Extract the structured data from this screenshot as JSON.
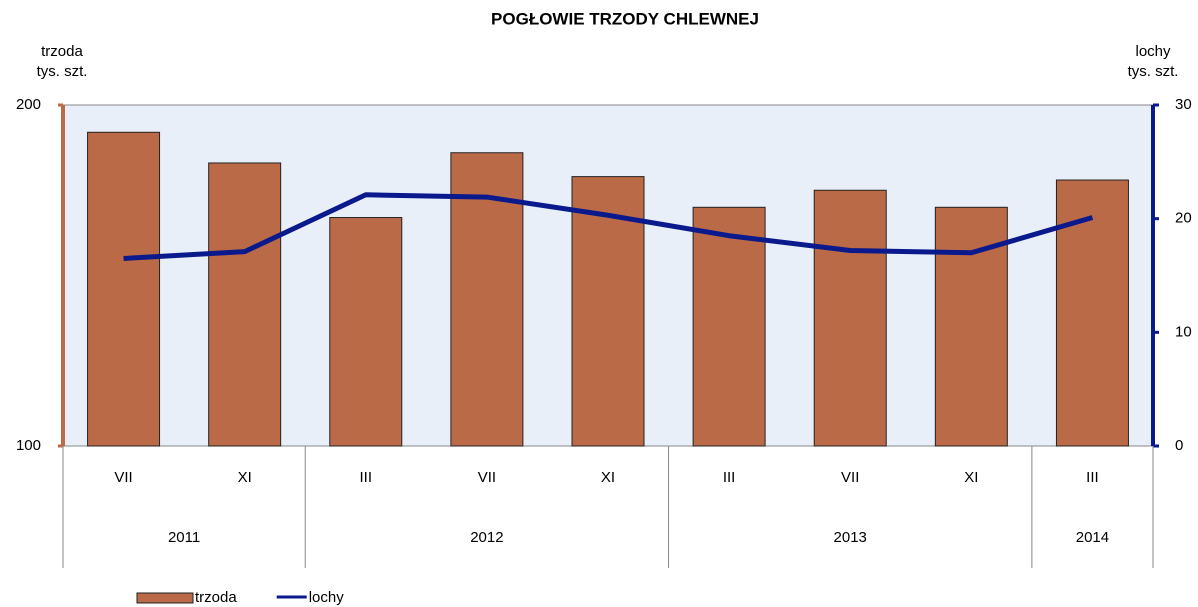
{
  "chart_data": {
    "type": "bar-line",
    "title": "POGŁOWIE  TRZODY  CHLEWNEJ",
    "ylabel": [
      "trzoda",
      "tys. szt."
    ],
    "y2label": [
      "lochy",
      "tys. szt."
    ],
    "categories": [
      "VII",
      "XI",
      "III",
      "VII",
      "XI",
      "III",
      "VII",
      "XI",
      "III"
    ],
    "years": [
      "2011",
      null,
      "2012",
      null,
      null,
      "2013",
      null,
      null,
      "2014"
    ],
    "series": [
      {
        "name": "trzoda",
        "type": "bar",
        "color": "#bb6a48",
        "values": [
          192,
          183,
          167,
          186,
          179,
          170,
          175,
          170,
          178
        ]
      },
      {
        "name": "lochy",
        "type": "line",
        "axis": "y2",
        "color": "#0a1a8c",
        "values": [
          16.5,
          17.1,
          22.1,
          21.9,
          20.3,
          18.5,
          17.2,
          17.0,
          20.1
        ]
      }
    ],
    "ylim": [
      100,
      200
    ],
    "yticks": [
      100,
      200
    ],
    "y2lim": [
      0,
      30
    ],
    "y2ticks": [
      0,
      10,
      20,
      30
    ],
    "yaxis_color": "#bb6a48",
    "y2axis_color": "#0a1a8c",
    "plot_background": "#e9eff8"
  }
}
